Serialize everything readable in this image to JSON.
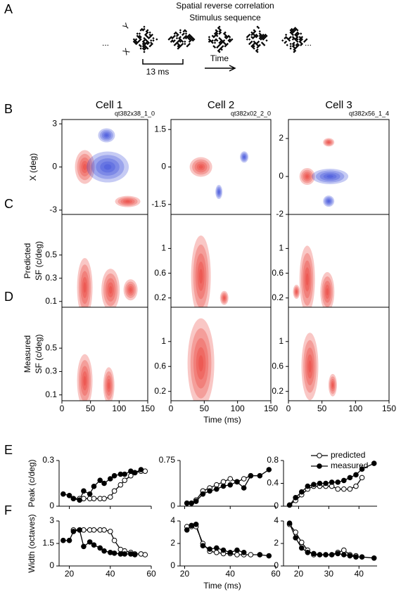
{
  "panel_a": {
    "label": "A",
    "title": "Spatial reverse correlation",
    "subtitle": "Stimulus sequence",
    "axis_y": "Y",
    "axis_x": "X",
    "ellipsis": "...",
    "scale_bar": "13 ms",
    "arrow": "Time"
  },
  "panel_labels": [
    "B",
    "C",
    "D",
    "E",
    "F"
  ],
  "cells": [
    {
      "title": "Cell 1",
      "id": "qt382x38_1_0"
    },
    {
      "title": "Cell 2",
      "id": "qt382x02_2_0"
    },
    {
      "title": "Cell 3",
      "id": "qt382x56_1_4"
    }
  ],
  "maps": {
    "time_label": "Time (ms)",
    "xlim": [
      0,
      150
    ],
    "xticks": [
      0,
      50,
      100,
      150
    ],
    "rows": [
      {
        "ylabel": [
          "X (deg)"
        ],
        "cells": [
          {
            "ylim": [
              -3.3,
              3.3
            ],
            "yticks": [
              -3,
              0,
              3
            ]
          },
          {
            "ylim": [
              -1.9,
              1.9
            ],
            "yticks": [
              -1.5,
              0,
              1.5
            ]
          },
          {
            "ylim": [
              -2,
              3
            ],
            "yticks": [
              -2,
              0,
              2
            ]
          }
        ]
      },
      {
        "ylabel": [
          "Predicted",
          "SF (c/deg)"
        ],
        "cells": [
          {
            "ylim": [
              0.05,
              0.85
            ],
            "yticks": [
              0.1,
              0.3,
              0.5
            ]
          },
          {
            "ylim": [
              0.05,
              1.55
            ],
            "yticks": [
              0.2,
              0.6,
              1
            ]
          },
          {
            "ylim": [
              0.05,
              1.55
            ],
            "yticks": [
              0.2,
              0.6,
              1
            ]
          }
        ]
      },
      {
        "ylabel": [
          "Measured",
          "SF (c/deg)"
        ],
        "cells": [
          {
            "ylim": [
              0.05,
              0.85
            ],
            "yticks": [
              0.1,
              0.3,
              0.5
            ]
          },
          {
            "ylim": [
              0.05,
              1.55
            ],
            "yticks": [
              0.2,
              0.6,
              1
            ]
          },
          {
            "ylim": [
              0.05,
              1.55
            ],
            "yticks": [
              0.2,
              0.6,
              1
            ]
          }
        ]
      }
    ]
  },
  "profiles": {
    "legend": [
      "predicted",
      "measured"
    ],
    "time_label": "Time (ms)",
    "rows": [
      {
        "ylabel": "Peak (c/deg)",
        "charts": [
          {
            "x": [
              17,
              20,
              22,
              25,
              27,
              30,
              32,
              35,
              37,
              40,
              42,
              45,
              47,
              50,
              52,
              55,
              57
            ],
            "xlim": [
              15,
              60
            ],
            "xticks": [
              20,
              40,
              60
            ],
            "ylim": [
              0,
              0.3
            ],
            "yticks": [
              0,
              0.3
            ],
            "series": [
              {
                "values": [
                  null,
                  null,
                  0.05,
                  0.05,
                  0.05,
                  0.05,
                  0.05,
                  0.05,
                  0.05,
                  0.06,
                  0.1,
                  0.14,
                  0.17,
                  0.2,
                  0.22,
                  0.23,
                  0.23
                ]
              },
              {
                "values": [
                  0.08,
                  0.07,
                  0.05,
                  0.04,
                  0.1,
                  0.08,
                  0.13,
                  0.17,
                  0.15,
                  0.18,
                  0.2,
                  0.21,
                  0.21,
                  0.23,
                  0.22,
                  0.24,
                  null
                ]
              }
            ]
          },
          {
            "x": [
              21,
              23,
              25,
              28,
              31,
              34,
              37,
              40,
              43,
              46,
              49,
              53,
              57
            ],
            "xlim": [
              18,
              60
            ],
            "xticks": [
              20,
              40,
              60
            ],
            "ylim": [
              0,
              0.75
            ],
            "yticks": [
              0,
              0.75
            ],
            "series": [
              {
                "values": [
                  0.05,
                  0.05,
                  0.1,
                  0.25,
                  0.3,
                  0.35,
                  0.4,
                  0.45,
                  0.4,
                  0.45,
                  0.5,
                  null,
                  null
                ]
              },
              {
                "values": [
                  0.05,
                  0.05,
                  0.08,
                  0.2,
                  0.25,
                  0.28,
                  0.33,
                  0.35,
                  0.4,
                  0.3,
                  0.5,
                  0.5,
                  0.6
                ]
              }
            ]
          },
          {
            "x": [
              17,
              19,
              21,
              23,
              25,
              27,
              29,
              31,
              33,
              35,
              37,
              39,
              41,
              45
            ],
            "xlim": [
              15,
              46
            ],
            "xticks": [
              20,
              30,
              40
            ],
            "ylim": [
              0,
              0.8
            ],
            "yticks": [
              0,
              0.4,
              0.8
            ],
            "series": [
              {
                "values": [
                  0.02,
                  0.1,
                  0.2,
                  0.3,
                  0.35,
                  0.35,
                  0.35,
                  0.35,
                  0.3,
                  0.3,
                  0.3,
                  0.35,
                  0.5,
                  null
                ]
              },
              {
                "values": [
                  0.02,
                  0.15,
                  0.25,
                  0.35,
                  0.38,
                  0.4,
                  0.4,
                  0.42,
                  0.42,
                  0.45,
                  0.5,
                  0.55,
                  0.65,
                  0.75
                ]
              }
            ]
          }
        ]
      },
      {
        "ylabel": "Width (octaves)",
        "charts": [
          {
            "x": [
              17,
              20,
              22,
              25,
              27,
              30,
              32,
              35,
              37,
              40,
              42,
              45,
              47,
              50,
              52,
              55,
              57
            ],
            "xlim": [
              15,
              60
            ],
            "xticks": [
              20,
              40,
              60
            ],
            "ylim": [
              0,
              3
            ],
            "yticks": [
              0,
              1.5,
              3
            ],
            "series": [
              {
                "values": [
                  null,
                  null,
                  2.4,
                  2.4,
                  2.4,
                  2.4,
                  2.4,
                  2.4,
                  2.4,
                  2.3,
                  1.7,
                  1.1,
                  1.0,
                  0.9,
                  0.8,
                  0.8,
                  0.75
                ]
              },
              {
                "values": [
                  1.7,
                  1.7,
                  2.3,
                  2.4,
                  1.3,
                  1.6,
                  1.4,
                  1.2,
                  1.0,
                  0.9,
                  0.85,
                  0.8,
                  0.8,
                  0.8,
                  0.75,
                  null,
                  null
                ]
              }
            ]
          },
          {
            "x": [
              21,
              23,
              25,
              28,
              31,
              34,
              37,
              40,
              43,
              46,
              49,
              53,
              57
            ],
            "xlim": [
              18,
              60
            ],
            "xticks": [
              20,
              40,
              60
            ],
            "ylim": [
              0,
              4
            ],
            "yticks": [
              0,
              2,
              4
            ],
            "series": [
              {
                "values": [
                  3.5,
                  3.5,
                  3.5,
                  2,
                  1.3,
                  1.2,
                  1.1,
                  1.1,
                  1.0,
                  1.0,
                  1.0,
                  1.0,
                  null
                ]
              },
              {
                "values": [
                  3.2,
                  3.6,
                  3.7,
                  1.8,
                  1.5,
                  1.6,
                  1.4,
                  1.2,
                  1.4,
                  1.2,
                  null,
                  1.0,
                  0.9
                ]
              }
            ]
          },
          {
            "x": [
              17,
              19,
              21,
              23,
              25,
              27,
              29,
              31,
              33,
              35,
              37,
              39,
              41,
              45
            ],
            "xlim": [
              15,
              46
            ],
            "xticks": [
              20,
              30,
              40
            ],
            "ylim": [
              0,
              4
            ],
            "yticks": [
              0,
              2,
              4
            ],
            "series": [
              {
                "values": [
                  3.7,
                  3.0,
                  2.1,
                  1.4,
                  1.0,
                  1.0,
                  1.0,
                  1.0,
                  1.2,
                  1.4,
                  1.0,
                  0.9,
                  null,
                  null
                ]
              },
              {
                "values": [
                  3.8,
                  2.5,
                  1.6,
                  1.2,
                  1.1,
                  1.0,
                  1.0,
                  1.0,
                  1.1,
                  1.0,
                  0.9,
                  0.8,
                  0.8,
                  0.7
                ]
              }
            ]
          }
        ]
      }
    ]
  }
}
